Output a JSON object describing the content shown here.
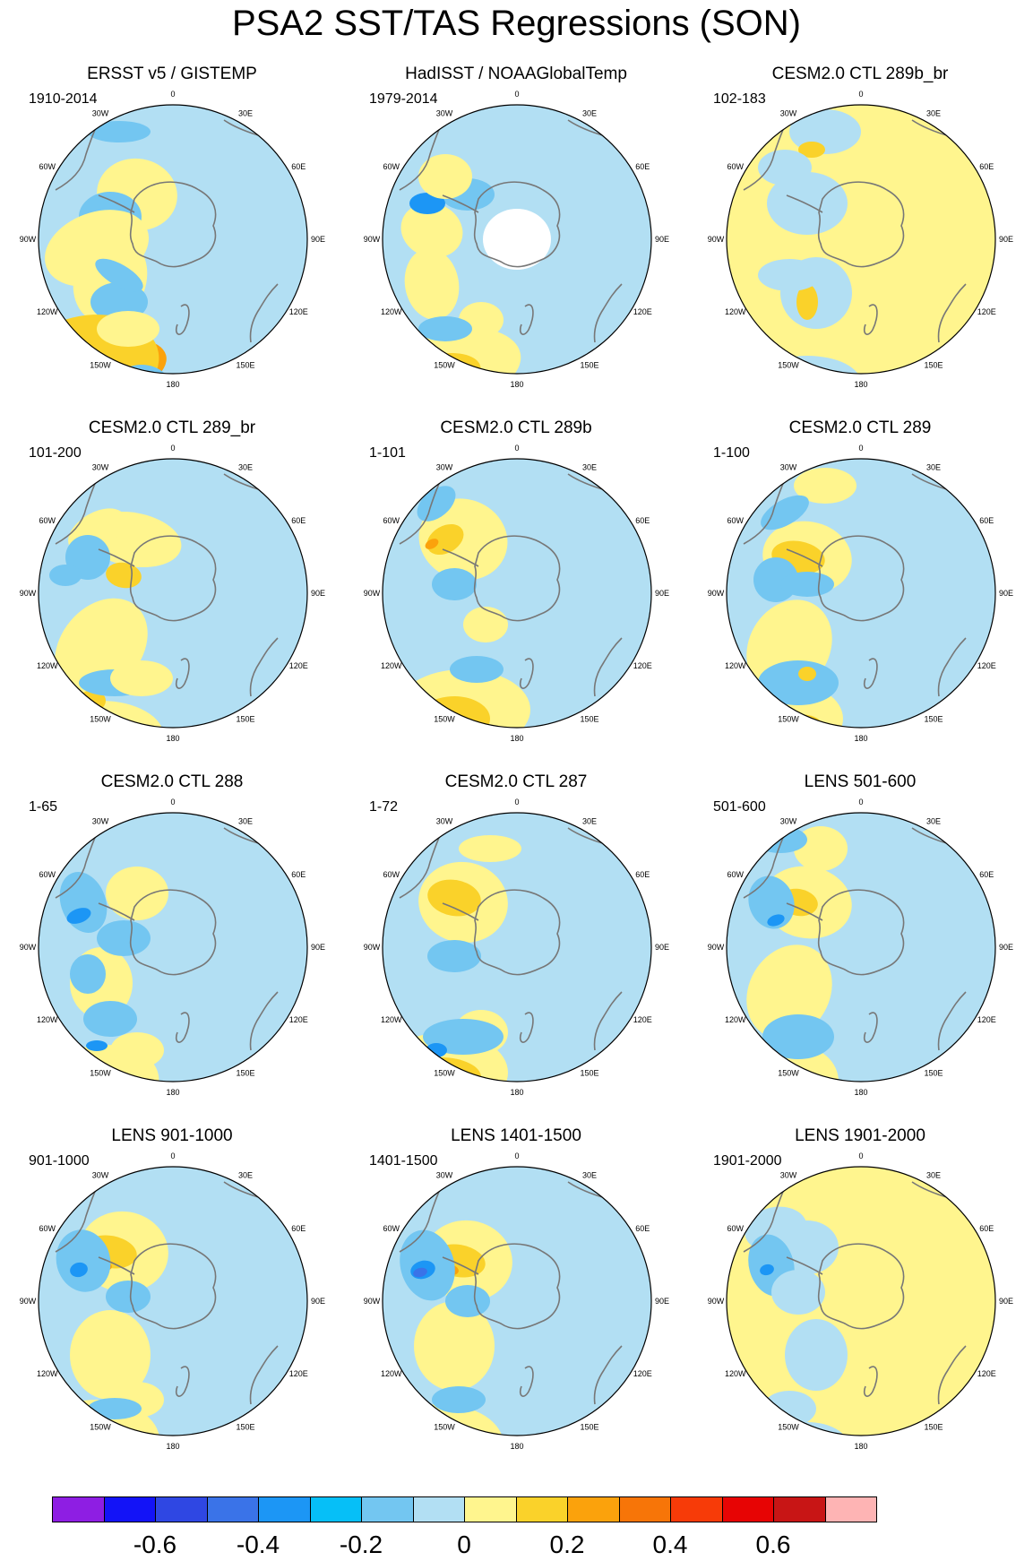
{
  "title": "PSA2 SST/TAS Regressions (SON)",
  "longitude_labels": [
    "0",
    "30E",
    "60E",
    "90E",
    "120E",
    "150E",
    "180",
    "150W",
    "120W",
    "90W",
    "60W",
    "30W"
  ],
  "colors": {
    "c1": "#8e1ee3",
    "c2": "#1313f7",
    "c3": "#2f47e3",
    "c4": "#3a73e8",
    "c5": "#1c96f5",
    "c6": "#06bff7",
    "c7": "#73c6f1",
    "c8": "#b2dff3",
    "w1": "#fff58e",
    "w2": "#fad22a",
    "w3": "#fba20c",
    "w4": "#f77508",
    "w5": "#f73b08",
    "w6": "#e70404",
    "w7": "#c81515",
    "w8": "#feb4b4",
    "coast": "#777777",
    "ocean_border": "#000000",
    "land": "#ffffff"
  },
  "colorbar": {
    "colors": [
      "#8e1ee3",
      "#1313f7",
      "#2f47e3",
      "#3a73e8",
      "#1c96f5",
      "#06bff7",
      "#73c6f1",
      "#b2dff3",
      "#fff58e",
      "#fad22a",
      "#fba20c",
      "#f77508",
      "#f73b08",
      "#e70404",
      "#c81515",
      "#feb4b4"
    ],
    "ticks": [
      -0.6,
      -0.4,
      -0.2,
      0,
      0.2,
      0.4,
      0.6
    ],
    "tick_labels": [
      "-0.6",
      "-0.4",
      "-0.2",
      "0",
      "0.2",
      "0.4",
      "0.6"
    ]
  },
  "panels": [
    {
      "title": "ERSST v5 / GISTEMP",
      "years": "1910-2014",
      "base": "c8",
      "blobs": [
        [
          "w1",
          -40,
          -50,
          45,
          40,
          10
        ],
        [
          "w1",
          -70,
          45,
          40,
          50,
          20
        ],
        [
          "c7",
          -70,
          -25,
          35,
          28,
          0
        ],
        [
          "c7",
          -60,
          70,
          32,
          22,
          0
        ],
        [
          "w1",
          -85,
          10,
          60,
          40,
          -20
        ],
        [
          "c7",
          -60,
          40,
          30,
          12,
          30
        ],
        [
          "w3",
          -85,
          150,
          80,
          35,
          -15
        ],
        [
          "w4",
          -105,
          160,
          45,
          16,
          -15
        ],
        [
          "w5",
          -125,
          175,
          18,
          8,
          -10
        ],
        [
          "w2",
          -95,
          140,
          80,
          55,
          -10
        ],
        [
          "c7",
          -60,
          -120,
          35,
          12,
          0
        ],
        [
          "w1",
          -50,
          100,
          35,
          20,
          0
        ],
        [
          "c7",
          -35,
          170,
          35,
          30,
          0
        ]
      ]
    },
    {
      "title": "HadISST / NOAAGlobalTemp",
      "years": "1979-2014",
      "base": "c8",
      "blobs": [
        [
          "w1",
          -95,
          -10,
          35,
          30,
          20
        ],
        [
          "w1",
          -95,
          50,
          30,
          40,
          -10
        ],
        [
          "c7",
          -55,
          -50,
          30,
          18,
          0
        ],
        [
          "c5",
          -100,
          -40,
          20,
          12,
          0
        ],
        [
          "w1",
          -65,
          140,
          70,
          40,
          -10
        ],
        [
          "w2",
          -85,
          150,
          45,
          22,
          -10
        ],
        [
          "w3",
          -105,
          160,
          18,
          10,
          0
        ],
        [
          "w1",
          -80,
          -70,
          30,
          25,
          0
        ],
        [
          "w1",
          -40,
          90,
          25,
          20,
          0
        ],
        [
          "c7",
          -80,
          100,
          30,
          14,
          0
        ],
        [
          "land",
          0,
          0,
          38,
          34,
          0
        ]
      ]
    },
    {
      "title": "CESM2.0 CTL 289b_br",
      "years": "102-183",
      "base": "w1",
      "blobs": [
        [
          "c8",
          -60,
          -40,
          45,
          35,
          0
        ],
        [
          "c8",
          -50,
          60,
          40,
          40,
          0
        ],
        [
          "c8",
          -60,
          160,
          60,
          30,
          0
        ],
        [
          "c8",
          -40,
          -120,
          40,
          25,
          0
        ],
        [
          "w2",
          -55,
          -100,
          15,
          9,
          0
        ],
        [
          "w2",
          -60,
          70,
          12,
          20,
          0
        ],
        [
          "c8",
          -80,
          40,
          35,
          18,
          0
        ],
        [
          "c8",
          -85,
          -80,
          30,
          20,
          0
        ]
      ]
    },
    {
      "title": "CESM2.0 CTL 289_br",
      "years": "101-200",
      "base": "c8",
      "blobs": [
        [
          "w1",
          -45,
          -60,
          55,
          30,
          10
        ],
        [
          "w1",
          -85,
          -70,
          35,
          20,
          -30
        ],
        [
          "w1",
          -80,
          60,
          45,
          60,
          40
        ],
        [
          "w1",
          -80,
          160,
          70,
          40,
          0
        ],
        [
          "w2",
          -90,
          120,
          15,
          12,
          0
        ],
        [
          "w2",
          -75,
          -150,
          25,
          10,
          -40
        ],
        [
          "w2",
          -55,
          -20,
          20,
          14,
          10
        ],
        [
          "c7",
          -95,
          -40,
          25,
          25,
          0
        ],
        [
          "c7",
          -65,
          100,
          40,
          15,
          0
        ],
        [
          "w1",
          -35,
          95,
          35,
          20,
          0
        ],
        [
          "c7",
          -120,
          -20,
          18,
          12,
          0
        ]
      ]
    },
    {
      "title": "CESM2.0 CTL 289b",
      "years": "1-101",
      "base": "c8",
      "blobs": [
        [
          "w1",
          -60,
          -60,
          50,
          45,
          20
        ],
        [
          "w2",
          -80,
          -60,
          22,
          15,
          -30
        ],
        [
          "w3",
          -95,
          -55,
          8,
          5,
          -30
        ],
        [
          "w1",
          -60,
          130,
          75,
          45,
          0
        ],
        [
          "w2",
          -70,
          140,
          40,
          25,
          0
        ],
        [
          "w3",
          -80,
          145,
          15,
          10,
          0
        ],
        [
          "w1",
          -35,
          35,
          25,
          20,
          0
        ],
        [
          "c7",
          -45,
          85,
          30,
          15,
          0
        ],
        [
          "c7",
          -70,
          -10,
          25,
          18,
          0
        ],
        [
          "c7",
          -90,
          -100,
          25,
          15,
          -40
        ],
        [
          "c7",
          -40,
          170,
          35,
          22,
          0
        ]
      ]
    },
    {
      "title": "CESM2.0 CTL 289",
      "years": "1-100",
      "base": "c8",
      "blobs": [
        [
          "w1",
          -60,
          -40,
          50,
          40,
          10
        ],
        [
          "w2",
          -70,
          -40,
          30,
          18,
          10
        ],
        [
          "w1",
          -80,
          60,
          45,
          55,
          30
        ],
        [
          "w1",
          -80,
          140,
          60,
          40,
          0
        ],
        [
          "w2",
          -70,
          145,
          25,
          10,
          0
        ],
        [
          "w1",
          -40,
          -120,
          35,
          20,
          0
        ],
        [
          "c7",
          -95,
          -15,
          25,
          25,
          0
        ],
        [
          "c7",
          -70,
          100,
          45,
          25,
          0
        ],
        [
          "c7",
          -60,
          -10,
          30,
          14,
          0
        ],
        [
          "w2",
          -60,
          90,
          10,
          8,
          0
        ],
        [
          "c7",
          -85,
          -90,
          30,
          14,
          -30
        ]
      ]
    },
    {
      "title": "CESM2.0 CTL 288",
      "years": "1-65",
      "base": "c8",
      "blobs": [
        [
          "w1",
          -40,
          -60,
          35,
          30,
          0
        ],
        [
          "w1",
          -80,
          40,
          35,
          40,
          0
        ],
        [
          "w1",
          -85,
          155,
          70,
          45,
          -10
        ],
        [
          "w2",
          -90,
          160,
          45,
          22,
          -10
        ],
        [
          "w1",
          -40,
          115,
          30,
          20,
          0
        ],
        [
          "c7",
          -100,
          -50,
          25,
          35,
          -20
        ],
        [
          "c5",
          -105,
          -35,
          14,
          8,
          -20
        ],
        [
          "c7",
          -95,
          30,
          20,
          22,
          0
        ],
        [
          "c7",
          -70,
          80,
          30,
          20,
          0
        ],
        [
          "c5",
          -85,
          110,
          12,
          6,
          0
        ],
        [
          "c7",
          -55,
          -10,
          30,
          20,
          0
        ]
      ]
    },
    {
      "title": "CESM2.0 CTL 287",
      "years": "1-72",
      "base": "c8",
      "blobs": [
        [
          "w1",
          -60,
          -50,
          50,
          45,
          10
        ],
        [
          "w2",
          -70,
          -55,
          30,
          20,
          10
        ],
        [
          "w1",
          -80,
          140,
          70,
          45,
          0
        ],
        [
          "w2",
          -85,
          145,
          45,
          22,
          0
        ],
        [
          "w3",
          -90,
          150,
          18,
          8,
          0
        ],
        [
          "w1",
          -40,
          95,
          30,
          25,
          0
        ],
        [
          "w1",
          -30,
          -110,
          35,
          15,
          0
        ],
        [
          "c7",
          -60,
          100,
          45,
          20,
          0
        ],
        [
          "c7",
          -70,
          10,
          30,
          18,
          0
        ],
        [
          "c5",
          -90,
          115,
          12,
          8,
          0
        ],
        [
          "c7",
          -40,
          170,
          35,
          20,
          0
        ]
      ]
    },
    {
      "title": "LENS 501-600",
      "years": "501-600",
      "base": "c8",
      "blobs": [
        [
          "w1",
          -60,
          -50,
          50,
          40,
          10
        ],
        [
          "w2",
          -70,
          -50,
          22,
          15,
          10
        ],
        [
          "w1",
          -80,
          50,
          45,
          55,
          30
        ],
        [
          "w1",
          -70,
          150,
          45,
          40,
          0
        ],
        [
          "w2",
          -75,
          155,
          25,
          14,
          0
        ],
        [
          "w1",
          -45,
          -110,
          30,
          25,
          0
        ],
        [
          "c7",
          -100,
          -50,
          25,
          30,
          -20
        ],
        [
          "c5",
          -95,
          -30,
          10,
          6,
          -20
        ],
        [
          "c7",
          -70,
          100,
          40,
          25,
          0
        ],
        [
          "c7",
          -90,
          -120,
          30,
          15,
          0
        ],
        [
          "c7",
          -40,
          175,
          30,
          20,
          0
        ]
      ]
    },
    {
      "title": "LENS 901-1000",
      "years": "901-1000",
      "base": "c8",
      "blobs": [
        [
          "w1",
          -55,
          -55,
          50,
          45,
          10
        ],
        [
          "w2",
          -70,
          -55,
          30,
          18,
          10
        ],
        [
          "w3",
          -80,
          -40,
          12,
          6,
          10
        ],
        [
          "w1",
          -70,
          60,
          45,
          50,
          0
        ],
        [
          "w1",
          -85,
          155,
          70,
          45,
          0
        ],
        [
          "w2",
          -95,
          160,
          40,
          20,
          0
        ],
        [
          "w1",
          -40,
          110,
          30,
          20,
          0
        ],
        [
          "c7",
          -100,
          -45,
          30,
          35,
          -15
        ],
        [
          "c5",
          -105,
          -35,
          10,
          8,
          -15
        ],
        [
          "c7",
          -65,
          120,
          30,
          12,
          0
        ],
        [
          "c7",
          -50,
          -5,
          25,
          18,
          0
        ]
      ]
    },
    {
      "title": "LENS 1401-1500",
      "years": "1401-1500",
      "base": "c8",
      "blobs": [
        [
          "w1",
          -55,
          -45,
          50,
          45,
          10
        ],
        [
          "w2",
          -65,
          -45,
          30,
          18,
          10
        ],
        [
          "w3",
          -75,
          -35,
          10,
          6,
          10
        ],
        [
          "w1",
          -70,
          50,
          45,
          50,
          0
        ],
        [
          "w1",
          -85,
          160,
          70,
          45,
          0
        ],
        [
          "w2",
          -90,
          165,
          40,
          18,
          0
        ],
        [
          "c7",
          -100,
          -40,
          30,
          40,
          -15
        ],
        [
          "c5",
          -105,
          -35,
          14,
          10,
          -15
        ],
        [
          "c4",
          -108,
          -32,
          8,
          5,
          -15
        ],
        [
          "c7",
          -65,
          110,
          30,
          15,
          0
        ],
        [
          "c7",
          -55,
          0,
          25,
          18,
          0
        ]
      ]
    },
    {
      "title": "LENS 1901-2000",
      "years": "1901-2000",
      "base": "w1",
      "blobs": [
        [
          "c8",
          -60,
          -60,
          35,
          30,
          0
        ],
        [
          "c8",
          -50,
          60,
          35,
          40,
          0
        ],
        [
          "c8",
          -60,
          160,
          45,
          25,
          0
        ],
        [
          "c8",
          -95,
          -80,
          35,
          25,
          -10
        ],
        [
          "c7",
          -100,
          -40,
          25,
          35,
          -15
        ],
        [
          "c5",
          -105,
          -35,
          8,
          6,
          -15
        ],
        [
          "c8",
          -80,
          120,
          30,
          20,
          0
        ],
        [
          "w2",
          -70,
          155,
          30,
          14,
          0
        ],
        [
          "w2",
          -60,
          -20,
          14,
          10,
          0
        ],
        [
          "c8",
          -70,
          -10,
          30,
          25,
          0
        ]
      ]
    }
  ]
}
